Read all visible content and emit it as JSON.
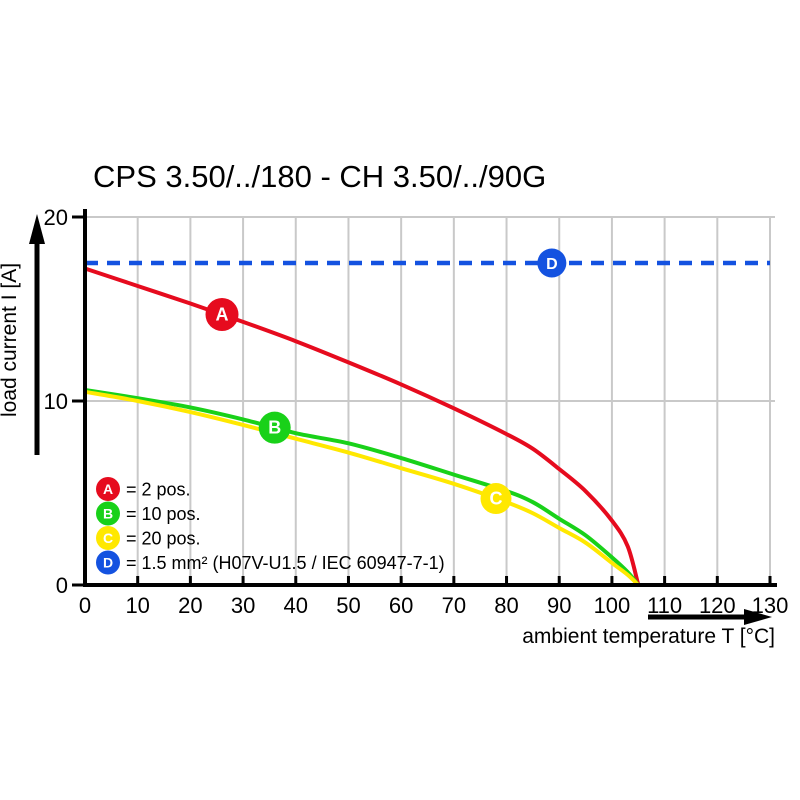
{
  "title": "CPS 3.50/../180 - CH 3.50/../90G",
  "chart_data": {
    "type": "line",
    "title": "CPS 3.50/../180 - CH 3.50/../90G",
    "xlabel": "ambient temperature T [°C]",
    "ylabel": "load current I [A]",
    "xlim": [
      0,
      130
    ],
    "ylim": [
      0,
      20
    ],
    "x_ticks": [
      0,
      10,
      20,
      30,
      40,
      50,
      60,
      70,
      80,
      90,
      100,
      110,
      120,
      130
    ],
    "y_ticks": [
      0,
      10,
      20
    ],
    "grid": true,
    "legend_position": "bottom-left-inside",
    "series": [
      {
        "id": "A",
        "legend_label": "= 2 pos.",
        "color": "#e60b1e",
        "line_style": "solid",
        "marker_t": 26,
        "points": [
          [
            0,
            17.2
          ],
          [
            10,
            16.25
          ],
          [
            20,
            15.3
          ],
          [
            30,
            14.3
          ],
          [
            40,
            13.25
          ],
          [
            50,
            12.1
          ],
          [
            60,
            10.9
          ],
          [
            70,
            9.6
          ],
          [
            80,
            8.2
          ],
          [
            85,
            7.4
          ],
          [
            90,
            6.3
          ],
          [
            95,
            5.1
          ],
          [
            100,
            3.5
          ],
          [
            103,
            2.1
          ],
          [
            105,
            0
          ]
        ]
      },
      {
        "id": "B",
        "legend_label": "= 10 pos.",
        "color": "#19d119",
        "line_style": "solid",
        "marker_t": 36,
        "points": [
          [
            0,
            10.6
          ],
          [
            10,
            10.15
          ],
          [
            20,
            9.65
          ],
          [
            30,
            9.0
          ],
          [
            40,
            8.25
          ],
          [
            50,
            7.7
          ],
          [
            60,
            6.9
          ],
          [
            70,
            6.0
          ],
          [
            80,
            5.1
          ],
          [
            85,
            4.5
          ],
          [
            90,
            3.6
          ],
          [
            95,
            2.7
          ],
          [
            100,
            1.5
          ],
          [
            103,
            0.7
          ],
          [
            105,
            0
          ]
        ]
      },
      {
        "id": "C",
        "legend_label": "= 20 pos.",
        "color": "#ffe800",
        "line_style": "solid",
        "marker_t": 78,
        "points": [
          [
            0,
            10.5
          ],
          [
            10,
            10.0
          ],
          [
            20,
            9.4
          ],
          [
            30,
            8.7
          ],
          [
            40,
            7.95
          ],
          [
            50,
            7.2
          ],
          [
            60,
            6.35
          ],
          [
            70,
            5.5
          ],
          [
            80,
            4.5
          ],
          [
            85,
            3.9
          ],
          [
            90,
            3.1
          ],
          [
            95,
            2.3
          ],
          [
            100,
            1.2
          ],
          [
            103,
            0.55
          ],
          [
            105,
            0
          ]
        ]
      },
      {
        "id": "D",
        "legend_label": "= 1.5 mm² (H07V-U1.5 / IEC 60947-7-1)",
        "color": "#1452e0",
        "line_style": "dashed",
        "marker_t": 88.6,
        "points": [
          [
            0,
            17.5
          ],
          [
            130,
            17.5
          ]
        ]
      }
    ]
  }
}
